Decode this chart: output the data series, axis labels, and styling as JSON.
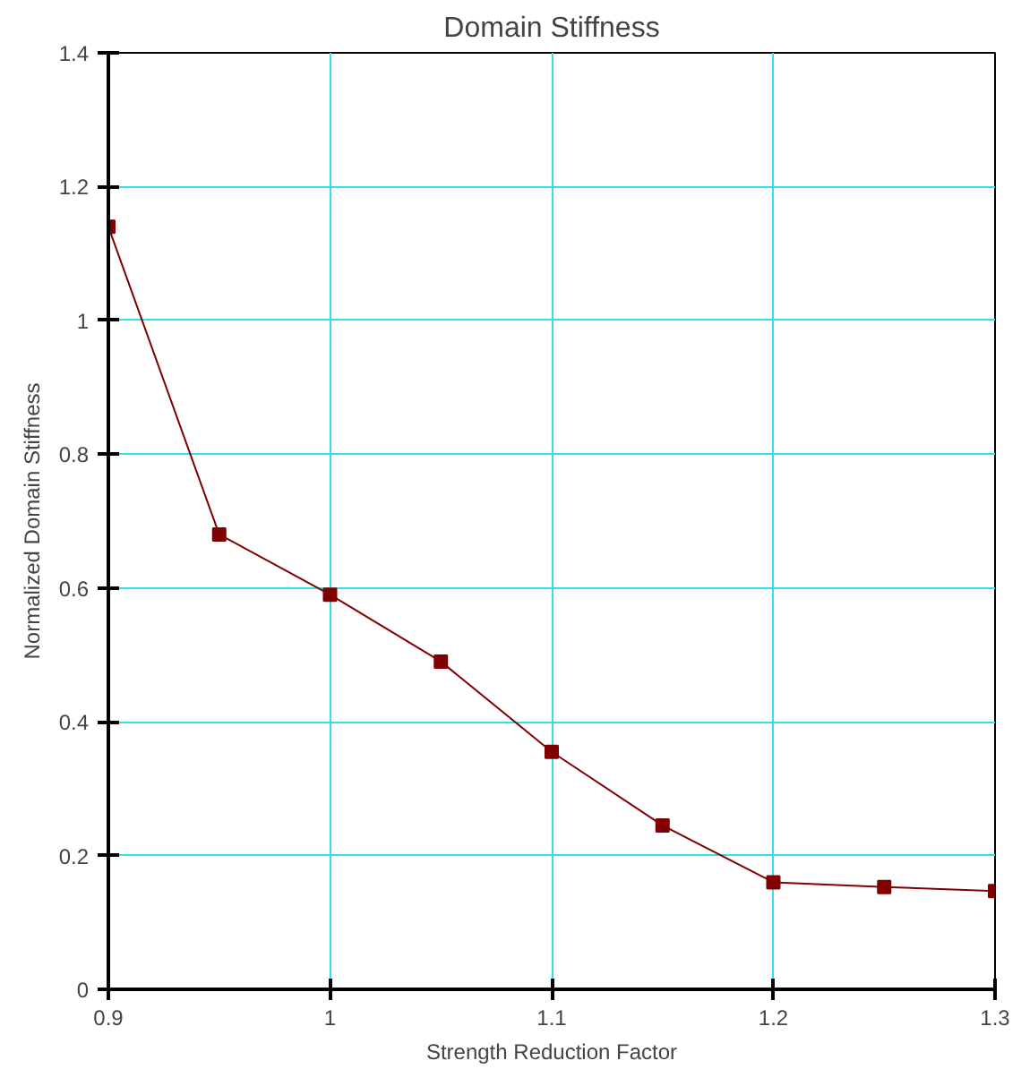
{
  "chart_data": {
    "type": "line",
    "title": "Domain Stiffness",
    "xlabel": "Strength Reduction Factor",
    "ylabel": "Normalized Domain Stiffness",
    "x": [
      0.9,
      0.95,
      1.0,
      1.05,
      1.1,
      1.15,
      1.2,
      1.25,
      1.3
    ],
    "series": [
      {
        "color": "#800000",
        "values": [
          1.14,
          0.68,
          0.59,
          0.49,
          0.355,
          0.245,
          0.16,
          0.153,
          0.147
        ]
      }
    ],
    "xlim": [
      0.9,
      1.3
    ],
    "xticks": [
      0.9,
      1,
      1.1,
      1.2,
      1.3
    ],
    "ylim": [
      0,
      1.4
    ],
    "yticks": [
      0,
      0.2,
      0.4,
      0.6,
      0.8,
      1,
      1.2,
      1.4
    ],
    "grid": true,
    "marker": "square",
    "line_style": "solid"
  }
}
